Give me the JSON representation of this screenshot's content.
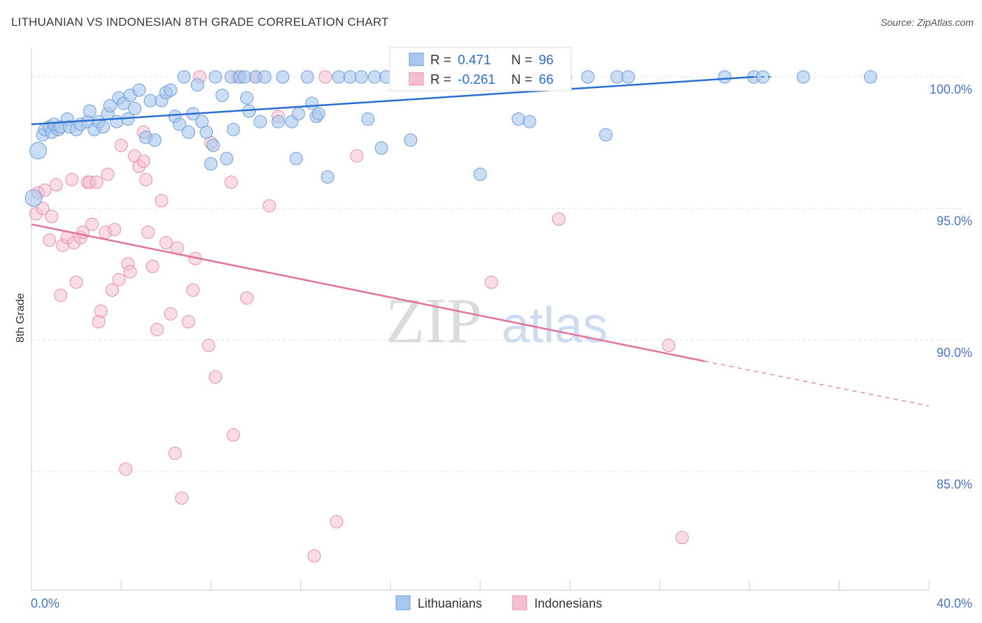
{
  "title": "LITHUANIAN VS INDONESIAN 8TH GRADE CORRELATION CHART",
  "source": "Source: ZipAtlas.com",
  "watermark": {
    "zip": "ZIP",
    "atlas": "atlas"
  },
  "colors": {
    "lithuanians_fill": "#a9c6ef",
    "lithuanians_stroke": "#6f9fdc",
    "lithuanians_line": "#2a6fcf",
    "indonesians_fill": "#f6bfd0",
    "indonesians_stroke": "#e98fae",
    "indonesians_line": "#e2729b",
    "tick_text": "#4a76c9",
    "grid": "#e2e2e2"
  },
  "legend_box": {
    "rows": [
      {
        "r_label": "R = ",
        "r_value": "0.471",
        "n_label": "N = ",
        "n_value": "96"
      },
      {
        "r_label": "R = ",
        "r_value": "-0.261",
        "n_label": "N = ",
        "n_value": "66"
      }
    ]
  },
  "bottom_legend": [
    "Lithuanians",
    "Indonesians"
  ],
  "chart_data": {
    "type": "scatter",
    "xlabel": "",
    "ylabel": "8th Grade",
    "xlim": [
      0,
      40
    ],
    "ylim": [
      80.5,
      100.8
    ],
    "x_tick_labels": [
      "0.0%",
      "40.0%"
    ],
    "y_ticks": [
      85,
      90,
      95,
      100
    ],
    "y_tick_labels": [
      "85.0%",
      "90.0%",
      "95.0%",
      "100.0%"
    ],
    "grid": true,
    "series": [
      {
        "name": "Lithuanians",
        "r": 0.471,
        "n": 96,
        "trend": {
          "x": [
            0,
            32.2
          ],
          "y": [
            98.2,
            100.0
          ],
          "extended_x": [
            32.2,
            33.0
          ],
          "extended_y": [
            100.0,
            100.0
          ]
        },
        "points": [
          [
            0.3,
            97.2
          ],
          [
            0.5,
            97.8
          ],
          [
            0.6,
            98.0
          ],
          [
            0.8,
            98.1
          ],
          [
            0.9,
            97.9
          ],
          [
            1.0,
            98.2
          ],
          [
            1.2,
            98.0
          ],
          [
            1.3,
            98.1
          ],
          [
            1.6,
            98.4
          ],
          [
            1.7,
            98.1
          ],
          [
            2.0,
            98.0
          ],
          [
            2.2,
            98.2
          ],
          [
            2.5,
            98.3
          ],
          [
            2.6,
            98.7
          ],
          [
            2.8,
            98.0
          ],
          [
            3.0,
            98.3
          ],
          [
            3.2,
            98.1
          ],
          [
            3.4,
            98.6
          ],
          [
            3.5,
            98.9
          ],
          [
            3.8,
            98.3
          ],
          [
            3.9,
            99.2
          ],
          [
            4.1,
            99.0
          ],
          [
            4.3,
            98.4
          ],
          [
            4.4,
            99.3
          ],
          [
            4.6,
            98.8
          ],
          [
            4.8,
            99.5
          ],
          [
            5.1,
            97.7
          ],
          [
            5.3,
            99.1
          ],
          [
            5.5,
            97.6
          ],
          [
            5.8,
            99.1
          ],
          [
            6.0,
            99.4
          ],
          [
            6.2,
            99.5
          ],
          [
            6.4,
            98.5
          ],
          [
            6.6,
            98.2
          ],
          [
            6.8,
            100.0
          ],
          [
            7.0,
            97.9
          ],
          [
            7.2,
            98.6
          ],
          [
            7.4,
            99.7
          ],
          [
            7.6,
            98.3
          ],
          [
            7.8,
            97.9
          ],
          [
            8.0,
            96.7
          ],
          [
            8.1,
            97.4
          ],
          [
            8.2,
            100.0
          ],
          [
            8.5,
            99.3
          ],
          [
            8.7,
            96.9
          ],
          [
            8.9,
            100.0
          ],
          [
            9.0,
            98.0
          ],
          [
            9.3,
            100.0
          ],
          [
            9.5,
            100.0
          ],
          [
            9.6,
            99.2
          ],
          [
            9.7,
            98.7
          ],
          [
            10.0,
            100.0
          ],
          [
            10.2,
            98.3
          ],
          [
            10.4,
            100.0
          ],
          [
            11.0,
            98.3
          ],
          [
            11.2,
            100.0
          ],
          [
            11.6,
            98.3
          ],
          [
            11.8,
            96.9
          ],
          [
            11.9,
            98.6
          ],
          [
            12.3,
            100.0
          ],
          [
            12.5,
            99.0
          ],
          [
            12.7,
            98.5
          ],
          [
            12.8,
            98.6
          ],
          [
            13.2,
            96.2
          ],
          [
            13.7,
            100.0
          ],
          [
            14.2,
            100.0
          ],
          [
            14.7,
            100.0
          ],
          [
            15.0,
            98.4
          ],
          [
            15.3,
            100.0
          ],
          [
            15.6,
            97.3
          ],
          [
            15.8,
            100.0
          ],
          [
            16.3,
            100.0
          ],
          [
            16.6,
            100.0
          ],
          [
            16.9,
            97.6
          ],
          [
            17.5,
            100.0
          ],
          [
            18.5,
            100.0
          ],
          [
            18.9,
            100.0
          ],
          [
            19.2,
            100.0
          ],
          [
            20.0,
            96.3
          ],
          [
            20.5,
            100.0
          ],
          [
            21.0,
            100.0
          ],
          [
            21.7,
            98.4
          ],
          [
            22.2,
            98.3
          ],
          [
            22.4,
            100.0
          ],
          [
            23.0,
            100.0
          ],
          [
            23.8,
            100.0
          ],
          [
            24.8,
            100.0
          ],
          [
            25.6,
            97.8
          ],
          [
            26.1,
            100.0
          ],
          [
            26.6,
            100.0
          ],
          [
            30.9,
            100.0
          ],
          [
            32.2,
            100.0
          ],
          [
            32.6,
            100.0
          ],
          [
            34.4,
            100.0
          ],
          [
            37.4,
            100.0
          ],
          [
            0.1,
            95.4
          ]
        ]
      },
      {
        "name": "Indonesians",
        "r": -0.261,
        "n": 66,
        "trend": {
          "x": [
            0,
            30.0
          ],
          "y": [
            94.4,
            89.2
          ],
          "extended_x": [
            30.0,
            40.0
          ],
          "extended_y": [
            89.2,
            87.5
          ]
        },
        "points": [
          [
            0.2,
            94.8
          ],
          [
            0.3,
            95.6
          ],
          [
            0.5,
            95.0
          ],
          [
            0.6,
            95.7
          ],
          [
            0.8,
            93.8
          ],
          [
            0.9,
            94.7
          ],
          [
            1.1,
            95.9
          ],
          [
            1.3,
            91.7
          ],
          [
            1.4,
            93.6
          ],
          [
            1.6,
            93.9
          ],
          [
            1.8,
            96.1
          ],
          [
            1.9,
            93.7
          ],
          [
            2.0,
            92.2
          ],
          [
            2.2,
            93.9
          ],
          [
            2.3,
            94.1
          ],
          [
            2.5,
            96.0
          ],
          [
            2.6,
            96.0
          ],
          [
            2.7,
            94.4
          ],
          [
            2.9,
            96.0
          ],
          [
            3.0,
            90.7
          ],
          [
            3.1,
            91.1
          ],
          [
            3.3,
            94.1
          ],
          [
            3.4,
            96.3
          ],
          [
            3.6,
            91.9
          ],
          [
            3.7,
            94.2
          ],
          [
            3.9,
            92.3
          ],
          [
            4.0,
            97.4
          ],
          [
            4.2,
            85.1
          ],
          [
            4.3,
            92.9
          ],
          [
            4.4,
            92.6
          ],
          [
            4.6,
            97.0
          ],
          [
            4.8,
            96.6
          ],
          [
            5.0,
            97.9
          ],
          [
            5.1,
            96.1
          ],
          [
            5.2,
            94.1
          ],
          [
            5.4,
            92.8
          ],
          [
            5.6,
            90.4
          ],
          [
            5.8,
            95.3
          ],
          [
            6.0,
            93.7
          ],
          [
            6.2,
            91.0
          ],
          [
            6.4,
            85.7
          ],
          [
            6.5,
            93.5
          ],
          [
            6.7,
            84.0
          ],
          [
            7.0,
            90.7
          ],
          [
            7.2,
            91.9
          ],
          [
            7.3,
            93.1
          ],
          [
            7.5,
            100.0
          ],
          [
            7.9,
            89.8
          ],
          [
            8.0,
            97.5
          ],
          [
            8.2,
            88.6
          ],
          [
            8.9,
            96.0
          ],
          [
            9.0,
            86.4
          ],
          [
            9.2,
            100.0
          ],
          [
            9.6,
            91.6
          ],
          [
            10.0,
            100.0
          ],
          [
            10.6,
            95.1
          ],
          [
            11.0,
            98.5
          ],
          [
            12.6,
            81.8
          ],
          [
            13.1,
            100.0
          ],
          [
            13.6,
            83.1
          ],
          [
            14.5,
            97.0
          ],
          [
            20.5,
            92.2
          ],
          [
            23.5,
            94.6
          ],
          [
            28.4,
            89.8
          ],
          [
            29.0,
            82.5
          ],
          [
            5.0,
            96.8
          ]
        ]
      }
    ]
  }
}
